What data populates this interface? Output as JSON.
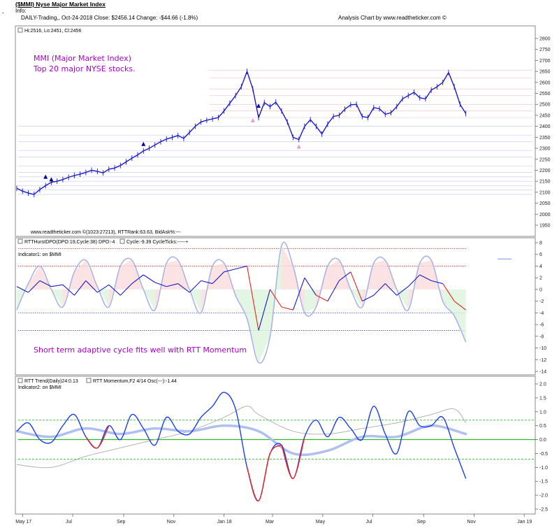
{
  "header": {
    "title": "($MMI) Nyse Major Market Index",
    "info": "Info:",
    "tick": "-",
    "stats": "DAILY-Trading,, Oct-24-2018  Close: $2456.14  Change: -$44.66  (-1.8%)",
    "analysis": "Analysis Chart by www.readtheticker.com ©"
  },
  "colors": {
    "price": "#1a1acc",
    "momentum": "#1e3cf0",
    "momentum_neg": "#ee2020",
    "cycle": "#aab4e6",
    "trend_slow": "#aebff0",
    "trend_gray": "#aaaaaa",
    "zero_line": "#22bb22",
    "dashed_green": "#33bb33",
    "dashed_red": "#ee2222",
    "annotation": "#aa00cc"
  },
  "chart_data": [
    {
      "type": "line",
      "panel": "price",
      "legend": "Hi:2516, Lo:2451, Cl:2456",
      "annotation_lines": [
        "MMI  (Major Market Index)",
        "Top 20 major NYSE stocks."
      ],
      "footer": "www.readtheticker.com ©(1023:27213), RTTRank:63.63, BidAsk%:---",
      "ylim": [
        1950,
        2800
      ],
      "yticks": [
        1950,
        2000,
        2050,
        2100,
        2150,
        2200,
        2250,
        2300,
        2350,
        2400,
        2450,
        2500,
        2550,
        2600,
        2650,
        2700,
        2750,
        2800
      ],
      "x_axis_labels": [
        "May 17",
        "Jul",
        "Sep",
        "Nov",
        "Jan 18",
        "Mar",
        "May",
        "Jul",
        "Sep",
        "Nov",
        "Jan 19"
      ],
      "series": [
        {
          "x": [
            "2017-04-24",
            "2017-05-01",
            "2017-05-08",
            "2017-05-15",
            "2017-05-22",
            "2017-05-29",
            "2017-06-05",
            "2017-06-12",
            "2017-06-19",
            "2017-06-26",
            "2017-07-03",
            "2017-07-10",
            "2017-07-17",
            "2017-07-24",
            "2017-07-31",
            "2017-08-07",
            "2017-08-14",
            "2017-08-21",
            "2017-08-28",
            "2017-09-04",
            "2017-09-11",
            "2017-09-18",
            "2017-09-25",
            "2017-10-02",
            "2017-10-09",
            "2017-10-16",
            "2017-10-23",
            "2017-10-30",
            "2017-11-06",
            "2017-11-13",
            "2017-11-20",
            "2017-11-27",
            "2017-12-04",
            "2017-12-11",
            "2017-12-18",
            "2017-12-25",
            "2018-01-01",
            "2018-01-08",
            "2018-01-15",
            "2018-01-22",
            "2018-01-29",
            "2018-02-05",
            "2018-02-12",
            "2018-02-19",
            "2018-02-26",
            "2018-03-05",
            "2018-03-12",
            "2018-03-19",
            "2018-03-26",
            "2018-04-02",
            "2018-04-09",
            "2018-04-16",
            "2018-04-23",
            "2018-04-30",
            "2018-05-07",
            "2018-05-14",
            "2018-05-21",
            "2018-05-28",
            "2018-06-04",
            "2018-06-11",
            "2018-06-18",
            "2018-06-25",
            "2018-07-02",
            "2018-07-09",
            "2018-07-16",
            "2018-07-23",
            "2018-07-30",
            "2018-08-06",
            "2018-08-13",
            "2018-08-20",
            "2018-08-27",
            "2018-09-03",
            "2018-09-10",
            "2018-09-17",
            "2018-09-24",
            "2018-10-01",
            "2018-10-08",
            "2018-10-15",
            "2018-10-22"
          ],
          "y": [
            2118,
            2105,
            2096,
            2090,
            2112,
            2130,
            2145,
            2150,
            2158,
            2168,
            2176,
            2182,
            2190,
            2200,
            2195,
            2188,
            2205,
            2210,
            2222,
            2238,
            2255,
            2270,
            2288,
            2300,
            2315,
            2330,
            2342,
            2350,
            2358,
            2345,
            2372,
            2400,
            2420,
            2428,
            2434,
            2440,
            2470,
            2505,
            2540,
            2580,
            2650,
            2570,
            2440,
            2508,
            2490,
            2510,
            2470,
            2420,
            2350,
            2340,
            2400,
            2430,
            2400,
            2365,
            2410,
            2445,
            2450,
            2478,
            2498,
            2500,
            2445,
            2440,
            2485,
            2480,
            2455,
            2462,
            2490,
            2525,
            2540,
            2555,
            2530,
            2525,
            2565,
            2580,
            2600,
            2645,
            2580,
            2500,
            2458
          ]
        }
      ],
      "triangles_up": [
        {
          "x": "2017-05-29",
          "y": 2171
        },
        {
          "x": "2017-06-05",
          "y": 2159
        },
        {
          "x": "2017-09-25",
          "y": 2320
        },
        {
          "x": "2018-02-12",
          "y": 2494
        }
      ],
      "triangles_pink": [
        {
          "x": "2018-02-05",
          "y": 2428
        },
        {
          "x": "2018-04-02",
          "y": 2308
        }
      ]
    },
    {
      "type": "line",
      "panel": "indicator1",
      "legend_items": [
        "RTTHurstDPO(DPO:19,Cycle:38) DPO:-4",
        "Cycle:-9.39 CycleTicks:-----+"
      ],
      "subtitle": "Indicator1: on $MMI",
      "annotation": "Short term adaptive cycle fits well with RTT Momentum",
      "ylim": [
        -14,
        8
      ],
      "yticks": [
        -14,
        -12,
        -10,
        -8,
        -6,
        -4,
        -2,
        0,
        2,
        4,
        6,
        8
      ],
      "red_dotted_levels": [
        4,
        7
      ],
      "blue_dotted_levels": [
        -4,
        -7
      ],
      "series": [
        {
          "name": "DPO",
          "x": [
            "2017-04-24",
            "2017-05-08",
            "2017-05-22",
            "2017-06-05",
            "2017-06-19",
            "2017-07-03",
            "2017-07-17",
            "2017-07-31",
            "2017-08-14",
            "2017-08-28",
            "2017-09-11",
            "2017-09-25",
            "2017-10-09",
            "2017-10-23",
            "2017-11-06",
            "2017-11-20",
            "2017-12-04",
            "2017-12-18",
            "2018-01-01",
            "2018-01-15",
            "2018-01-29",
            "2018-02-12",
            "2018-02-26",
            "2018-03-12",
            "2018-03-26",
            "2018-04-09",
            "2018-04-23",
            "2018-05-07",
            "2018-05-21",
            "2018-06-04",
            "2018-06-18",
            "2018-07-02",
            "2018-07-16",
            "2018-07-30",
            "2018-08-13",
            "2018-08-27",
            "2018-09-10",
            "2018-09-24",
            "2018-10-08",
            "2018-10-22"
          ],
          "y": [
            0.5,
            -0.5,
            1.5,
            0.5,
            0.8,
            -1.0,
            1.5,
            -0.5,
            0.8,
            -1.0,
            1.0,
            2.5,
            1.2,
            0.5,
            1.0,
            -0.5,
            1.5,
            1.0,
            3.0,
            3.5,
            4.0,
            -7.0,
            0.0,
            -3.0,
            -3.5,
            2.0,
            -1.0,
            -2.0,
            1.5,
            3.0,
            -2.0,
            -1.0,
            1.0,
            -1.0,
            0.5,
            2.5,
            1.5,
            1.0,
            -2.0,
            -3.5
          ]
        },
        {
          "name": "Cycle",
          "x": [
            "2017-04-24",
            "2017-05-08",
            "2017-05-22",
            "2017-06-05",
            "2017-06-19",
            "2017-07-03",
            "2017-07-17",
            "2017-07-31",
            "2017-08-14",
            "2017-08-28",
            "2017-09-11",
            "2017-09-25",
            "2017-10-09",
            "2017-10-23",
            "2017-11-06",
            "2017-11-20",
            "2017-12-04",
            "2017-12-18",
            "2018-01-01",
            "2018-01-15",
            "2018-01-29",
            "2018-02-12",
            "2018-02-26",
            "2018-03-12",
            "2018-03-26",
            "2018-04-09",
            "2018-04-23",
            "2018-05-07",
            "2018-05-21",
            "2018-06-04",
            "2018-06-18",
            "2018-07-02",
            "2018-07-16",
            "2018-07-30",
            "2018-08-13",
            "2018-08-27",
            "2018-09-10",
            "2018-09-24",
            "2018-10-08",
            "2018-10-22"
          ],
          "y": [
            -3.5,
            1.0,
            4.0,
            0.0,
            -3.0,
            3.0,
            5.0,
            0.5,
            -3.0,
            4.0,
            5.0,
            0.0,
            -3.5,
            4.5,
            5.0,
            0.0,
            -4.0,
            4.0,
            4.5,
            -1.0,
            -5.0,
            -12.5,
            -8.0,
            7.5,
            4.0,
            -4.0,
            -3.0,
            4.0,
            5.0,
            0.0,
            -3.0,
            4.5,
            5.0,
            0.0,
            -3.5,
            4.5,
            5.0,
            -2.0,
            -4.5,
            -9.0
          ]
        }
      ]
    },
    {
      "type": "line",
      "panel": "indicator2",
      "legend_items": [
        "RTT Trend(Daily)24:0.13",
        "RTT Momentum,F2 4/14 Osc(---):-1.44"
      ],
      "subtitle": "Indicator2: on $MMI",
      "ylim": [
        -2.5,
        2.0
      ],
      "yticks": [
        -2.5,
        -2.0,
        -1.5,
        -1.0,
        -0.5,
        0.0,
        0.5,
        1.0,
        1.5,
        2.0
      ],
      "dashed_levels": [
        0.7,
        -0.7
      ],
      "zero_line": 0.0,
      "series": [
        {
          "name": "RTT Momentum",
          "x": [
            "2017-04-24",
            "2017-05-08",
            "2017-05-22",
            "2017-06-05",
            "2017-06-19",
            "2017-07-03",
            "2017-07-17",
            "2017-07-31",
            "2017-08-14",
            "2017-08-28",
            "2017-09-11",
            "2017-09-25",
            "2017-10-09",
            "2017-10-23",
            "2017-11-06",
            "2017-11-20",
            "2017-12-04",
            "2017-12-18",
            "2018-01-01",
            "2018-01-15",
            "2018-01-29",
            "2018-02-12",
            "2018-02-26",
            "2018-03-12",
            "2018-03-26",
            "2018-04-09",
            "2018-04-23",
            "2018-05-07",
            "2018-05-21",
            "2018-06-04",
            "2018-06-18",
            "2018-07-02",
            "2018-07-16",
            "2018-07-30",
            "2018-08-13",
            "2018-08-27",
            "2018-09-10",
            "2018-09-24",
            "2018-10-08",
            "2018-10-22"
          ],
          "y": [
            0.3,
            0.6,
            0.0,
            -0.1,
            0.5,
            0.9,
            0.1,
            -0.3,
            0.5,
            0.0,
            0.9,
            0.4,
            -0.2,
            0.8,
            0.3,
            0.2,
            0.8,
            1.2,
            1.7,
            1.1,
            -1.0,
            -2.2,
            -0.5,
            -0.2,
            -1.4,
            0.1,
            0.7,
            0.1,
            0.8,
            0.4,
            0.0,
            1.2,
            0.2,
            -0.5,
            1.0,
            0.5,
            0.5,
            0.8,
            -0.3,
            -1.4
          ]
        },
        {
          "name": "RTT Trend",
          "x": [
            "2017-04-24",
            "2017-06-05",
            "2017-07-17",
            "2017-08-28",
            "2017-10-09",
            "2017-11-20",
            "2018-01-01",
            "2018-02-12",
            "2018-03-26",
            "2018-05-07",
            "2018-06-18",
            "2018-07-30",
            "2018-09-10",
            "2018-10-22"
          ],
          "y": [
            0.3,
            0.1,
            0.4,
            0.2,
            0.4,
            0.3,
            0.5,
            0.3,
            -0.5,
            -0.4,
            0.1,
            0.1,
            0.5,
            0.2
          ]
        },
        {
          "name": "Trend (gray)",
          "x": [
            "2017-04-24",
            "2017-06-05",
            "2017-07-17",
            "2017-08-28",
            "2017-10-09",
            "2017-11-20",
            "2018-01-01",
            "2018-01-29",
            "2018-02-12",
            "2018-03-26",
            "2018-05-07",
            "2018-06-18",
            "2018-07-30",
            "2018-09-10",
            "2018-10-08",
            "2018-10-22"
          ],
          "y": [
            -0.9,
            -1.0,
            -0.6,
            -0.3,
            0.0,
            0.3,
            0.8,
            1.2,
            0.9,
            0.3,
            0.2,
            0.4,
            0.6,
            0.9,
            1.1,
            0.6
          ]
        }
      ]
    }
  ]
}
